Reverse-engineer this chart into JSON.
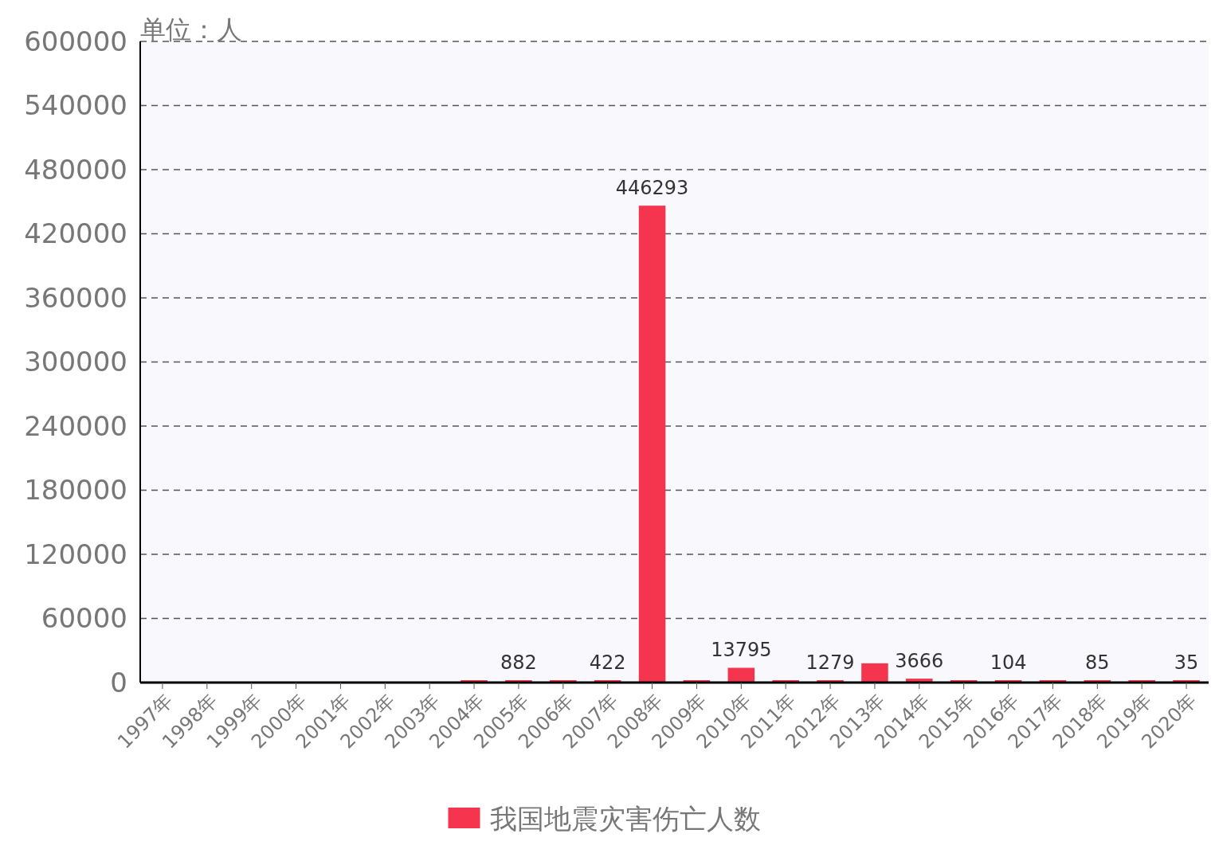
{
  "chart_data": {
    "type": "bar",
    "ylabel": "单位：人",
    "categories": [
      "1997年",
      "1998年",
      "1999年",
      "2000年",
      "2001年",
      "2002年",
      "2003年",
      "2004年",
      "2005年",
      "2006年",
      "2007年",
      "2008年",
      "2009年",
      "2010年",
      "2011年",
      "2012年",
      "2013年",
      "2014年",
      "2015年",
      "2016年",
      "2017年",
      "2018年",
      "2019年",
      "2020年"
    ],
    "series": [
      {
        "name": "我国地震灾害伤亡人数",
        "color": "#f5344e",
        "values": [
          null,
          null,
          null,
          null,
          null,
          null,
          null,
          1000,
          882,
          1000,
          422,
          446293,
          1000,
          13795,
          1000,
          1279,
          18000,
          3666,
          1000,
          104,
          1000,
          85,
          1000,
          35
        ],
        "value_labels": [
          null,
          null,
          null,
          null,
          null,
          null,
          null,
          null,
          "882",
          null,
          "422",
          "446293",
          null,
          "13795",
          null,
          "1279",
          null,
          "3666",
          null,
          "104",
          null,
          "85",
          null,
          "35"
        ]
      }
    ],
    "ylim": [
      0,
      600000
    ],
    "yticks": [
      0,
      60000,
      120000,
      180000,
      240000,
      300000,
      360000,
      420000,
      480000,
      540000,
      600000
    ],
    "grid": "y",
    "legend": "bottom"
  }
}
